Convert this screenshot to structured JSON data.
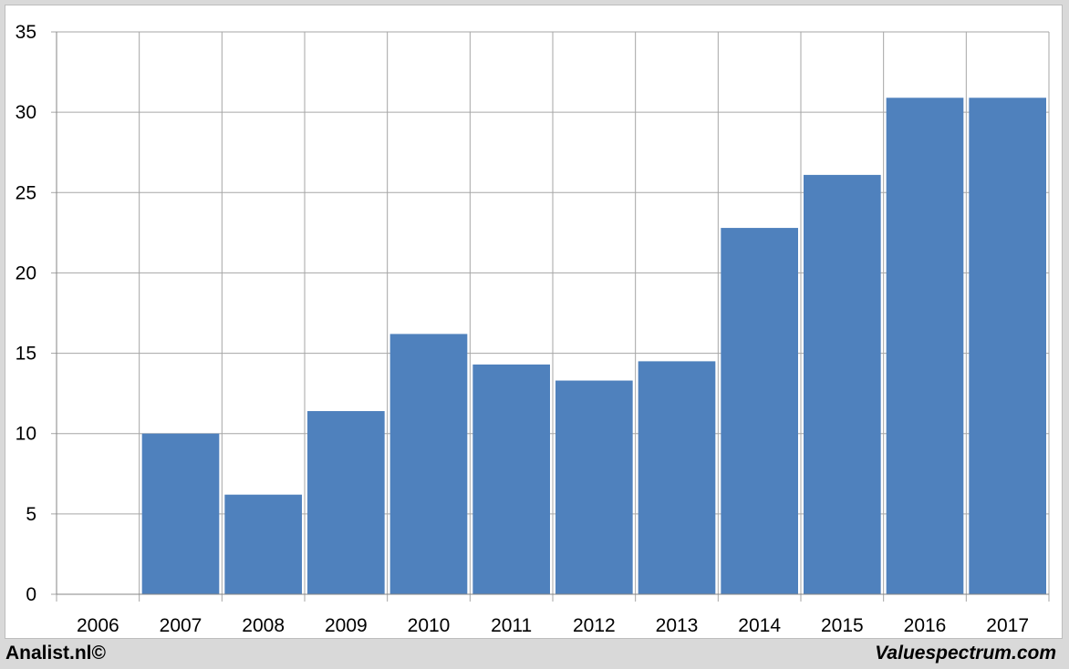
{
  "chart_data": {
    "type": "bar",
    "categories": [
      "2006",
      "2007",
      "2008",
      "2009",
      "2010",
      "2011",
      "2012",
      "2013",
      "2014",
      "2015",
      "2016",
      "2017"
    ],
    "values": [
      0,
      10.0,
      6.2,
      11.4,
      16.2,
      14.3,
      13.3,
      14.5,
      22.8,
      26.1,
      30.9,
      30.9
    ],
    "ylim": [
      0,
      35
    ],
    "yticks": [
      "0",
      "5",
      "10",
      "15",
      "20",
      "25",
      "30",
      "35"
    ],
    "title": "",
    "xlabel": "",
    "ylabel": "",
    "grid": true,
    "bar_color": "#4f81bd",
    "grid_color": "#a6a6a6"
  },
  "footer": {
    "left": "Analist.nl©",
    "right": "Valuespectrum.com"
  }
}
